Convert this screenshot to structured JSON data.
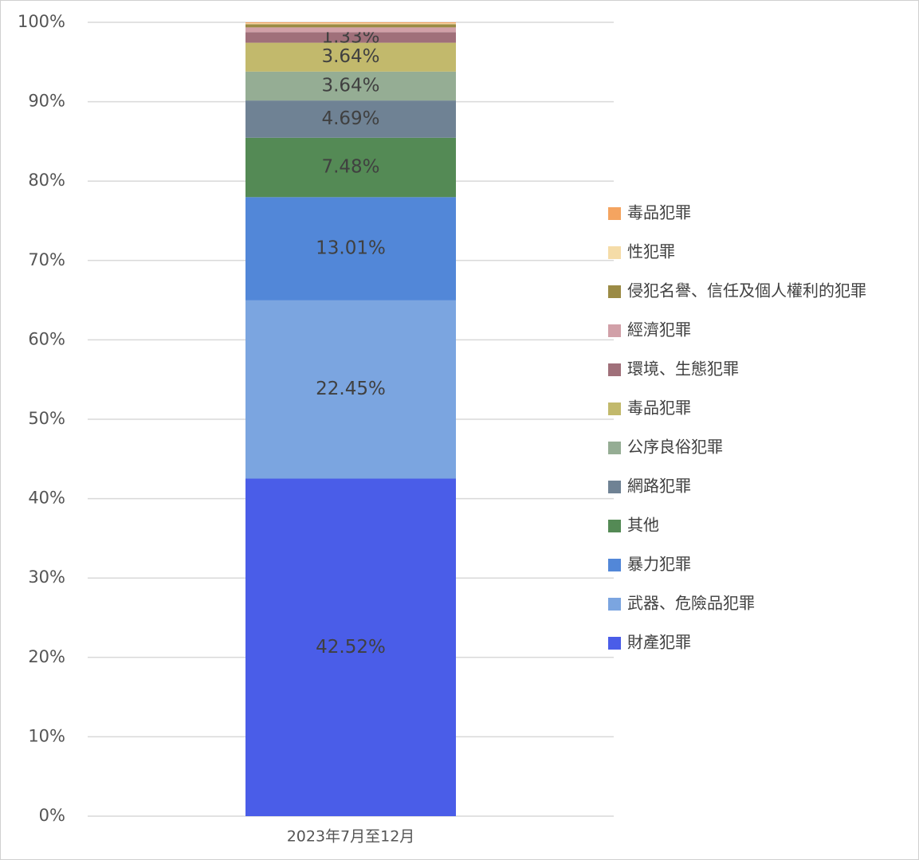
{
  "chart_data": {
    "type": "stacked-bar",
    "categories": [
      "2023年7月至12月"
    ],
    "ylim": [
      0,
      100
    ],
    "yticks": [
      {
        "value": 0,
        "label": "0%"
      },
      {
        "value": 10,
        "label": "10%"
      },
      {
        "value": 20,
        "label": "20%"
      },
      {
        "value": 30,
        "label": "30%"
      },
      {
        "value": 40,
        "label": "40%"
      },
      {
        "value": 50,
        "label": "50%"
      },
      {
        "value": 60,
        "label": "60%"
      },
      {
        "value": 70,
        "label": "70%"
      },
      {
        "value": 80,
        "label": "80%"
      },
      {
        "value": 90,
        "label": "90%"
      },
      {
        "value": 100,
        "label": "100%"
      }
    ],
    "grid": true,
    "legend": "right",
    "series": [
      {
        "name": "財產犯罪",
        "color": "#4a5de8",
        "values": [
          42.52
        ],
        "value_labels": [
          "42.52%"
        ]
      },
      {
        "name": "武器、危險品犯罪",
        "color": "#7ba5e0",
        "values": [
          22.45
        ],
        "value_labels": [
          "22.45%"
        ]
      },
      {
        "name": "暴力犯罪",
        "color": "#5287d8",
        "values": [
          13.01
        ],
        "value_labels": [
          "13.01%"
        ]
      },
      {
        "name": "其他",
        "color": "#548a55",
        "values": [
          7.48
        ],
        "value_labels": [
          "7.48%"
        ]
      },
      {
        "name": "網路犯罪",
        "color": "#6f8294",
        "values": [
          4.69
        ],
        "value_labels": [
          "4.69%"
        ]
      },
      {
        "name": "公序良俗犯罪",
        "color": "#95ad94",
        "values": [
          3.64
        ],
        "value_labels": [
          "3.64%"
        ]
      },
      {
        "name": "毒品犯罪",
        "color": "#c2b96c",
        "values": [
          3.64
        ],
        "value_labels": [
          "3.64%"
        ]
      },
      {
        "name": "環境、生態犯罪",
        "color": "#a0707a",
        "values": [
          1.33
        ],
        "value_labels": [
          "1.33%"
        ]
      },
      {
        "name": "經濟犯罪",
        "color": "#d1a0a8",
        "values": [
          0.6
        ]
      },
      {
        "name": "侵犯名譽、信任及個人權利的犯罪",
        "color": "#9b8b45",
        "values": [
          0.4
        ]
      },
      {
        "name": "性犯罪",
        "color": "#f5dca8",
        "values": [
          0.12
        ]
      },
      {
        "name": "毒品犯罪",
        "color": "#f4a460",
        "values": [
          0.12
        ]
      }
    ]
  }
}
